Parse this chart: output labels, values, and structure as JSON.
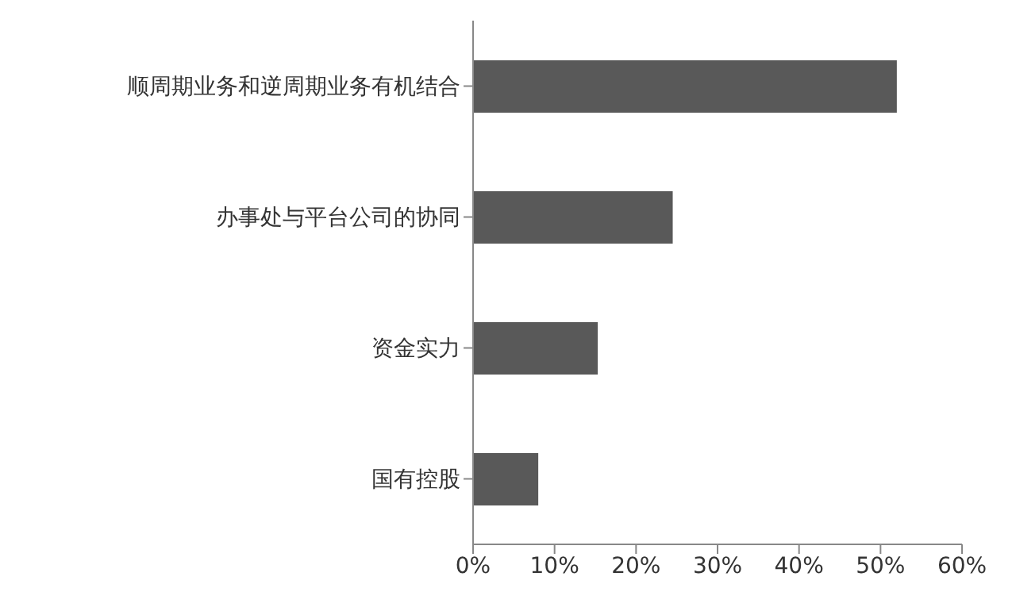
{
  "chart_data": {
    "type": "bar",
    "orientation": "horizontal",
    "categories": [
      "顺周期业务和逆周期业务有机结合",
      "办事处与平台公司的协同",
      "资金实力",
      "国有控股"
    ],
    "values": [
      52,
      24.5,
      15.3,
      8
    ],
    "color": "#595959",
    "xlim": [
      0,
      60
    ],
    "xticks": [
      {
        "value": 0,
        "label": "0%"
      },
      {
        "value": 10,
        "label": "10%"
      },
      {
        "value": 20,
        "label": "20%"
      },
      {
        "value": 30,
        "label": "30%"
      },
      {
        "value": 40,
        "label": "40%"
      },
      {
        "value": 50,
        "label": "50%"
      },
      {
        "value": 60,
        "label": "60%"
      }
    ],
    "grid": false,
    "legend": false
  }
}
